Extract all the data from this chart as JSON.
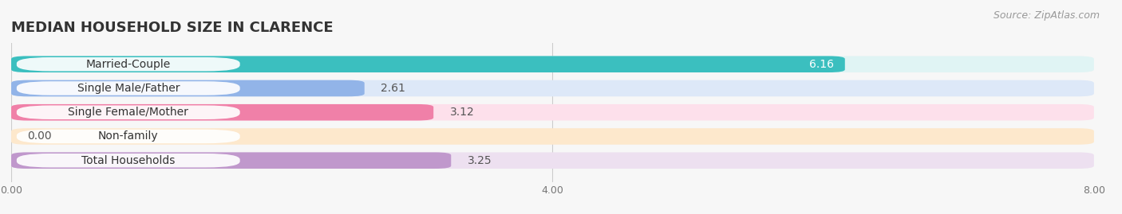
{
  "title": "MEDIAN HOUSEHOLD SIZE IN CLARENCE",
  "source": "Source: ZipAtlas.com",
  "categories": [
    "Married-Couple",
    "Single Male/Father",
    "Single Female/Mother",
    "Non-family",
    "Total Households"
  ],
  "values": [
    6.16,
    2.61,
    3.12,
    0.0,
    3.25
  ],
  "bar_colors": [
    "#3bbfbf",
    "#92b4e8",
    "#f080a8",
    "#f5c888",
    "#c098cc"
  ],
  "bar_bg_colors": [
    "#e0f4f4",
    "#dde8f8",
    "#fde0eb",
    "#fde8cc",
    "#ede0f0"
  ],
  "value_inside": [
    true,
    false,
    false,
    false,
    false
  ],
  "xlim": [
    0,
    8.0
  ],
  "xticks": [
    0.0,
    4.0,
    8.0
  ],
  "background_color": "#f7f7f7",
  "bar_row_bg": "#efefef",
  "title_fontsize": 13,
  "label_fontsize": 10,
  "value_fontsize": 10,
  "source_fontsize": 9
}
